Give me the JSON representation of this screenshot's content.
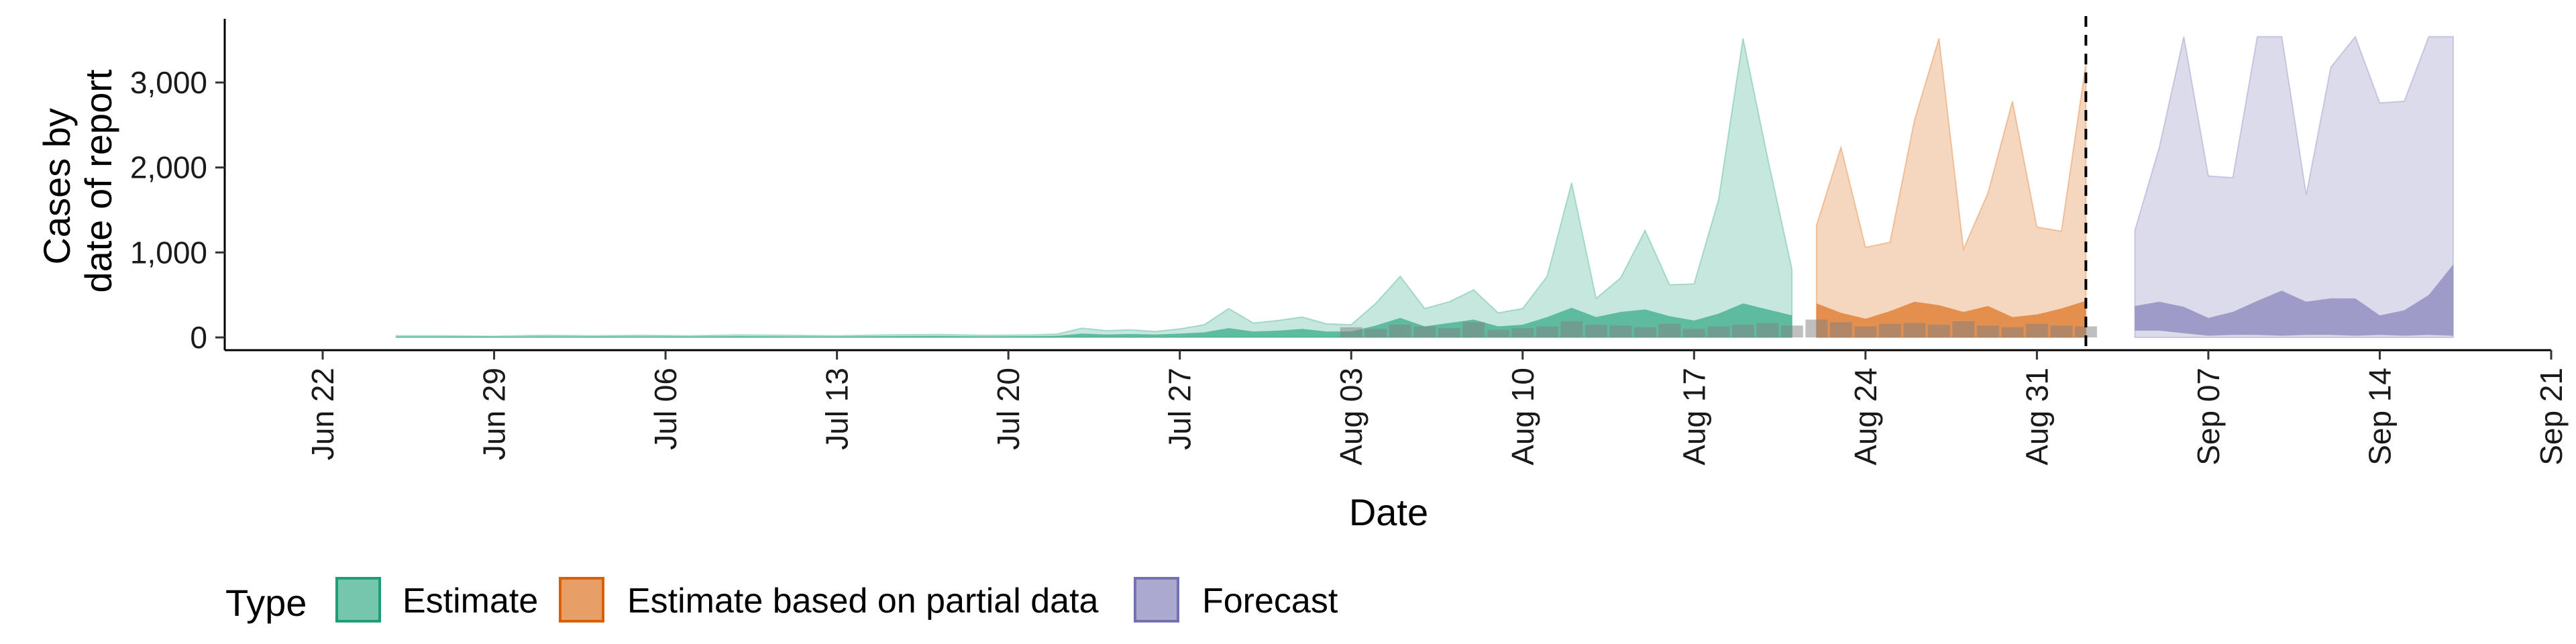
{
  "chart_data": {
    "type": "area",
    "xlabel": "Date",
    "ylabel_lines": [
      "Cases by",
      "date of report"
    ],
    "x_domain": [
      "2020-06-18",
      "2020-09-21"
    ],
    "ylim": [
      -150,
      3750
    ],
    "x_ticks": [
      {
        "date": "2020-06-22",
        "label": "Jun 22"
      },
      {
        "date": "2020-06-29",
        "label": "Jun 29"
      },
      {
        "date": "2020-07-06",
        "label": "Jul 06"
      },
      {
        "date": "2020-07-13",
        "label": "Jul 13"
      },
      {
        "date": "2020-07-20",
        "label": "Jul 20"
      },
      {
        "date": "2020-07-27",
        "label": "Jul 27"
      },
      {
        "date": "2020-08-03",
        "label": "Aug 03"
      },
      {
        "date": "2020-08-10",
        "label": "Aug 10"
      },
      {
        "date": "2020-08-17",
        "label": "Aug 17"
      },
      {
        "date": "2020-08-24",
        "label": "Aug 24"
      },
      {
        "date": "2020-08-31",
        "label": "Aug 31"
      },
      {
        "date": "2020-09-07",
        "label": "Sep 07"
      },
      {
        "date": "2020-09-14",
        "label": "Sep 14"
      },
      {
        "date": "2020-09-21",
        "label": "Sep 21"
      }
    ],
    "y_ticks": [
      {
        "value": 0,
        "label": "0"
      },
      {
        "value": 1000,
        "label": "1,000"
      },
      {
        "value": 2000,
        "label": "2,000"
      },
      {
        "value": 3000,
        "label": "3,000"
      }
    ],
    "vline_date": "2020-09-02",
    "legend": {
      "title": "Type",
      "position": "bottom",
      "items": [
        {
          "label": "Estimate",
          "fill": "#1B9E77"
        },
        {
          "label": "Estimate based on partial data",
          "fill": "#D95F02"
        },
        {
          "label": "Forecast",
          "fill": "#7570B3"
        }
      ]
    },
    "series": [
      {
        "name": "Estimate",
        "color": "#1B9E77",
        "dates": [
          "2020-06-25",
          "2020-06-27",
          "2020-06-29",
          "2020-07-01",
          "2020-07-03",
          "2020-07-05",
          "2020-07-07",
          "2020-07-09",
          "2020-07-11",
          "2020-07-13",
          "2020-07-15",
          "2020-07-17",
          "2020-07-19",
          "2020-07-21",
          "2020-07-22",
          "2020-07-23",
          "2020-07-24",
          "2020-07-25",
          "2020-07-26",
          "2020-07-27",
          "2020-07-28",
          "2020-07-29",
          "2020-07-30",
          "2020-07-31",
          "2020-08-01",
          "2020-08-02",
          "2020-08-03",
          "2020-08-04",
          "2020-08-05",
          "2020-08-06",
          "2020-08-07",
          "2020-08-08",
          "2020-08-09",
          "2020-08-10",
          "2020-08-11",
          "2020-08-12",
          "2020-08-13",
          "2020-08-14",
          "2020-08-15",
          "2020-08-16",
          "2020-08-17",
          "2020-08-18",
          "2020-08-19",
          "2020-08-20",
          "2020-08-21"
        ],
        "outer_upper": [
          20,
          20,
          15,
          25,
          20,
          25,
          20,
          30,
          25,
          20,
          30,
          35,
          25,
          30,
          40,
          110,
          80,
          90,
          70,
          100,
          150,
          340,
          170,
          200,
          240,
          160,
          150,
          400,
          720,
          340,
          420,
          560,
          290,
          340,
          720,
          1820,
          460,
          700,
          1260,
          620,
          630,
          1620,
          3520,
          2120,
          800
        ],
        "outer_lower": [
          0,
          0,
          0,
          0,
          0,
          0,
          0,
          0,
          0,
          0,
          0,
          0,
          0,
          0,
          0,
          0,
          0,
          0,
          0,
          0,
          0,
          0,
          0,
          0,
          0,
          0,
          0,
          0,
          0,
          0,
          0,
          0,
          0,
          0,
          0,
          0,
          0,
          0,
          0,
          0,
          0,
          0,
          0,
          0,
          0
        ],
        "inner_upper": [
          10,
          10,
          8,
          12,
          10,
          12,
          10,
          15,
          12,
          10,
          15,
          18,
          12,
          15,
          20,
          45,
          35,
          40,
          35,
          45,
          60,
          110,
          70,
          80,
          100,
          70,
          70,
          140,
          230,
          130,
          170,
          210,
          130,
          150,
          240,
          350,
          240,
          300,
          330,
          250,
          200,
          280,
          400,
          330,
          260
        ],
        "inner_lower": [
          0,
          0,
          0,
          0,
          0,
          0,
          0,
          0,
          0,
          0,
          0,
          0,
          0,
          0,
          0,
          0,
          0,
          0,
          0,
          0,
          0,
          0,
          0,
          0,
          0,
          0,
          0,
          0,
          0,
          0,
          0,
          0,
          0,
          0,
          0,
          0,
          0,
          0,
          0,
          0,
          0,
          0,
          0,
          0,
          0
        ]
      },
      {
        "name": "Estimate based on partial data",
        "color": "#D95F02",
        "dates": [
          "2020-08-22",
          "2020-08-23",
          "2020-08-24",
          "2020-08-25",
          "2020-08-26",
          "2020-08-27",
          "2020-08-28",
          "2020-08-29",
          "2020-08-30",
          "2020-08-31",
          "2020-09-01",
          "2020-09-02"
        ],
        "outer_upper": [
          1320,
          2240,
          1060,
          1120,
          2560,
          3520,
          1040,
          1700,
          2780,
          1300,
          1250,
          3220
        ],
        "outer_lower": [
          0,
          0,
          0,
          0,
          0,
          0,
          0,
          0,
          0,
          0,
          0,
          0
        ],
        "inner_upper": [
          400,
          290,
          220,
          310,
          420,
          380,
          300,
          370,
          240,
          270,
          340,
          430
        ],
        "inner_lower": [
          0,
          0,
          0,
          0,
          0,
          0,
          0,
          0,
          0,
          0,
          0,
          0
        ]
      },
      {
        "name": "Forecast",
        "color": "#7570B3",
        "dates": [
          "2020-09-04",
          "2020-09-05",
          "2020-09-06",
          "2020-09-07",
          "2020-09-08",
          "2020-09-09",
          "2020-09-10",
          "2020-09-11",
          "2020-09-12",
          "2020-09-13",
          "2020-09-14",
          "2020-09-15",
          "2020-09-16",
          "2020-09-17"
        ],
        "outer_upper": [
          1260,
          2240,
          3540,
          1900,
          1880,
          3540,
          3540,
          1680,
          3180,
          3540,
          2760,
          2780,
          3540,
          3540
        ],
        "outer_lower": [
          0,
          0,
          0,
          0,
          0,
          0,
          0,
          0,
          0,
          0,
          0,
          0,
          0,
          0
        ],
        "inner_upper": [
          370,
          420,
          360,
          230,
          300,
          430,
          550,
          420,
          460,
          460,
          260,
          320,
          500,
          860
        ],
        "inner_lower": [
          80,
          80,
          50,
          20,
          30,
          30,
          20,
          30,
          30,
          20,
          30,
          20,
          30,
          20
        ]
      }
    ],
    "reported_cases": {
      "color": "#808080",
      "dates": [
        "2020-08-03",
        "2020-08-04",
        "2020-08-05",
        "2020-08-06",
        "2020-08-07",
        "2020-08-08",
        "2020-08-09",
        "2020-08-10",
        "2020-08-11",
        "2020-08-12",
        "2020-08-13",
        "2020-08-14",
        "2020-08-15",
        "2020-08-16",
        "2020-08-17",
        "2020-08-18",
        "2020-08-19",
        "2020-08-20",
        "2020-08-21",
        "2020-08-22",
        "2020-08-23",
        "2020-08-24",
        "2020-08-25",
        "2020-08-26",
        "2020-08-27",
        "2020-08-28",
        "2020-08-29",
        "2020-08-30",
        "2020-08-31",
        "2020-09-01",
        "2020-09-02"
      ],
      "values": [
        120,
        100,
        150,
        130,
        110,
        180,
        90,
        110,
        130,
        190,
        150,
        140,
        120,
        160,
        100,
        130,
        150,
        170,
        140,
        210,
        180,
        130,
        160,
        170,
        150,
        190,
        140,
        120,
        160,
        140,
        130
      ]
    }
  }
}
